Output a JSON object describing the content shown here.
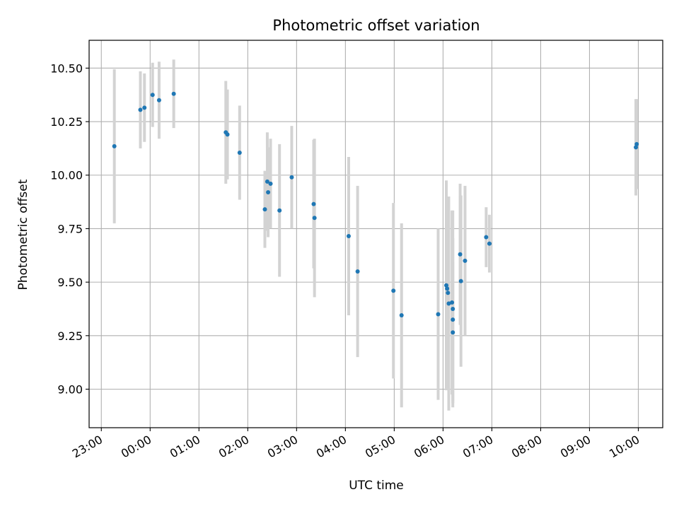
{
  "chart_data": {
    "type": "scatter",
    "title": "Photometric offset variation",
    "xlabel": "UTC time",
    "ylabel": "Photometric offset",
    "x_tick_labels": [
      "23:00",
      "00:00",
      "01:00",
      "02:00",
      "03:00",
      "04:00",
      "05:00",
      "06:00",
      "07:00",
      "08:00",
      "09:00",
      "10:00"
    ],
    "y_ticks": [
      9.0,
      9.25,
      9.5,
      9.75,
      10.0,
      10.25,
      10.5
    ],
    "y_tick_labels": [
      "9.00",
      "9.25",
      "9.50",
      "9.75",
      "10.00",
      "10.25",
      "10.50"
    ],
    "xlim": [
      "22:45",
      "10:30"
    ],
    "ylim": [
      8.82,
      10.63
    ],
    "grid": true,
    "marker_color": "#1f77b4",
    "errorbar_color": "#d3d3d3",
    "points": [
      {
        "x": "23:16",
        "y": 10.135,
        "err": 0.36
      },
      {
        "x": "23:48",
        "y": 10.305,
        "err": 0.18
      },
      {
        "x": "23:53",
        "y": 10.315,
        "err": 0.16
      },
      {
        "x": "00:03",
        "y": 10.375,
        "err": 0.15
      },
      {
        "x": "00:11",
        "y": 10.35,
        "err": 0.18
      },
      {
        "x": "00:29",
        "y": 10.38,
        "err": 0.16
      },
      {
        "x": "01:33",
        "y": 10.2,
        "err": 0.24
      },
      {
        "x": "01:35",
        "y": 10.19,
        "err": 0.21
      },
      {
        "x": "01:50",
        "y": 10.105,
        "err": 0.22
      },
      {
        "x": "02:21",
        "y": 9.84,
        "err": 0.18
      },
      {
        "x": "02:24",
        "y": 9.97,
        "err": 0.23
      },
      {
        "x": "02:25",
        "y": 9.92,
        "err": 0.21
      },
      {
        "x": "02:28",
        "y": 9.96,
        "err": 0.21
      },
      {
        "x": "02:39",
        "y": 9.835,
        "err": 0.31
      },
      {
        "x": "02:54",
        "y": 9.99,
        "err": 0.24
      },
      {
        "x": "03:21",
        "y": 9.865,
        "err": 0.3
      },
      {
        "x": "03:22",
        "y": 9.8,
        "err": 0.37
      },
      {
        "x": "04:04",
        "y": 9.715,
        "err": 0.37
      },
      {
        "x": "04:15",
        "y": 9.55,
        "err": 0.4
      },
      {
        "x": "04:59",
        "y": 9.46,
        "err": 0.41
      },
      {
        "x": "05:09",
        "y": 9.345,
        "err": 0.43
      },
      {
        "x": "05:54",
        "y": 9.35,
        "err": 0.4
      },
      {
        "x": "06:04",
        "y": 9.485,
        "err": 0.49
      },
      {
        "x": "06:05",
        "y": 9.47,
        "err": 0.43
      },
      {
        "x": "06:06",
        "y": 9.45,
        "err": 0.45
      },
      {
        "x": "06:07",
        "y": 9.4,
        "err": 0.5
      },
      {
        "x": "06:11",
        "y": 9.405,
        "err": 0.43
      },
      {
        "x": "06:12",
        "y": 9.375,
        "err": 0.46
      },
      {
        "x": "06:12",
        "y": 9.325,
        "err": 0.38
      },
      {
        "x": "06:12",
        "y": 9.265,
        "err": 0.33
      },
      {
        "x": "06:21",
        "y": 9.63,
        "err": 0.33
      },
      {
        "x": "06:22",
        "y": 9.505,
        "err": 0.4
      },
      {
        "x": "06:27",
        "y": 9.6,
        "err": 0.35
      },
      {
        "x": "06:53",
        "y": 9.71,
        "err": 0.14
      },
      {
        "x": "06:57",
        "y": 9.68,
        "err": 0.135
      },
      {
        "x": "09:57",
        "y": 10.13,
        "err": 0.225
      },
      {
        "x": "09:58",
        "y": 10.145,
        "err": 0.21
      }
    ]
  }
}
